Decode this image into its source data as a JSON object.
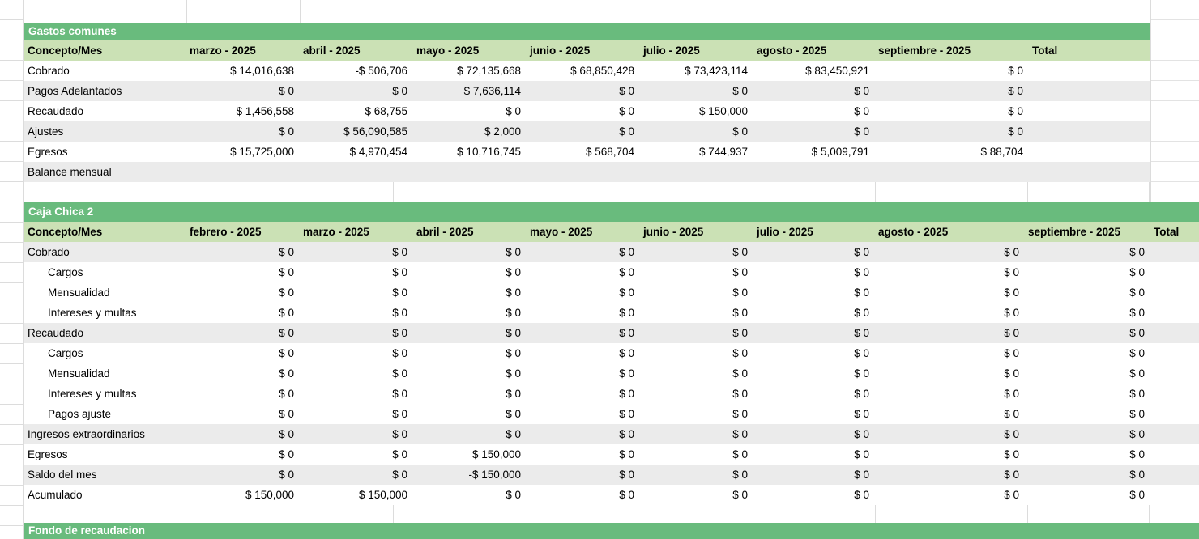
{
  "colors": {
    "banner_green": "#69bb7d",
    "header_green": "#cbe1b5",
    "band_gray": "#ebebeb",
    "gridline": "#dcdcdc",
    "banner_text": "#ffffff"
  },
  "tables": [
    {
      "title": "Gastos comunes",
      "columns": [
        "Concepto/Mes",
        "marzo - 2025",
        "abril - 2025",
        "mayo - 2025",
        "junio - 2025",
        "julio - 2025",
        "agosto - 2025",
        "septiembre - 2025",
        "Total"
      ],
      "rows": [
        {
          "label": "Cobrado",
          "indent": false,
          "shaded": false,
          "values": [
            "$ 14,016,638",
            "-$ 506,706",
            "$ 72,135,668",
            "$ 68,850,428",
            "$ 73,423,114",
            "$ 83,450,921",
            "$ 0",
            ""
          ]
        },
        {
          "label": "Pagos Adelantados",
          "indent": false,
          "shaded": true,
          "values": [
            "$ 0",
            "$ 0",
            "$ 7,636,114",
            "$ 0",
            "$ 0",
            "$ 0",
            "$ 0",
            ""
          ]
        },
        {
          "label": "Recaudado",
          "indent": false,
          "shaded": false,
          "values": [
            "$ 1,456,558",
            "$ 68,755",
            "$ 0",
            "$ 0",
            "$ 150,000",
            "$ 0",
            "$ 0",
            ""
          ]
        },
        {
          "label": "Ajustes",
          "indent": false,
          "shaded": true,
          "values": [
            "$ 0",
            "$ 56,090,585",
            "$ 2,000",
            "$ 0",
            "$ 0",
            "$ 0",
            "$ 0",
            ""
          ]
        },
        {
          "label": "Egresos",
          "indent": false,
          "shaded": false,
          "values": [
            "$ 15,725,000",
            "$ 4,970,454",
            "$ 10,716,745",
            "$ 568,704",
            "$ 744,937",
            "$ 5,009,791",
            "$ 88,704",
            ""
          ]
        },
        {
          "label": "Balance mensual",
          "indent": false,
          "shaded": true,
          "values": [
            "",
            "",
            "",
            "",
            "",
            "",
            "",
            ""
          ]
        }
      ]
    },
    {
      "title": "Caja Chica 2",
      "columns": [
        "Concepto/Mes",
        "febrero - 2025",
        "marzo - 2025",
        "abril - 2025",
        "mayo - 2025",
        "junio - 2025",
        "julio - 2025",
        "agosto - 2025",
        "septiembre - 2025",
        "Total"
      ],
      "rows": [
        {
          "label": "Cobrado",
          "indent": false,
          "shaded": true,
          "values": [
            "$ 0",
            "$ 0",
            "$ 0",
            "$ 0",
            "$ 0",
            "$ 0",
            "$ 0",
            "$ 0",
            ""
          ]
        },
        {
          "label": "Cargos",
          "indent": true,
          "shaded": false,
          "values": [
            "$ 0",
            "$ 0",
            "$ 0",
            "$ 0",
            "$ 0",
            "$ 0",
            "$ 0",
            "$ 0",
            ""
          ]
        },
        {
          "label": "Mensualidad",
          "indent": true,
          "shaded": false,
          "values": [
            "$ 0",
            "$ 0",
            "$ 0",
            "$ 0",
            "$ 0",
            "$ 0",
            "$ 0",
            "$ 0",
            ""
          ]
        },
        {
          "label": "Intereses y multas",
          "indent": true,
          "shaded": false,
          "values": [
            "$ 0",
            "$ 0",
            "$ 0",
            "$ 0",
            "$ 0",
            "$ 0",
            "$ 0",
            "$ 0",
            ""
          ]
        },
        {
          "label": "Recaudado",
          "indent": false,
          "shaded": true,
          "values": [
            "$ 0",
            "$ 0",
            "$ 0",
            "$ 0",
            "$ 0",
            "$ 0",
            "$ 0",
            "$ 0",
            ""
          ]
        },
        {
          "label": "Cargos",
          "indent": true,
          "shaded": false,
          "values": [
            "$ 0",
            "$ 0",
            "$ 0",
            "$ 0",
            "$ 0",
            "$ 0",
            "$ 0",
            "$ 0",
            ""
          ]
        },
        {
          "label": "Mensualidad",
          "indent": true,
          "shaded": false,
          "values": [
            "$ 0",
            "$ 0",
            "$ 0",
            "$ 0",
            "$ 0",
            "$ 0",
            "$ 0",
            "$ 0",
            ""
          ]
        },
        {
          "label": "Intereses y multas",
          "indent": true,
          "shaded": false,
          "values": [
            "$ 0",
            "$ 0",
            "$ 0",
            "$ 0",
            "$ 0",
            "$ 0",
            "$ 0",
            "$ 0",
            ""
          ]
        },
        {
          "label": "Pagos ajuste",
          "indent": true,
          "shaded": false,
          "values": [
            "$ 0",
            "$ 0",
            "$ 0",
            "$ 0",
            "$ 0",
            "$ 0",
            "$ 0",
            "$ 0",
            ""
          ]
        },
        {
          "label": "Ingresos extraordinarios",
          "indent": false,
          "shaded": true,
          "values": [
            "$ 0",
            "$ 0",
            "$ 0",
            "$ 0",
            "$ 0",
            "$ 0",
            "$ 0",
            "$ 0",
            ""
          ]
        },
        {
          "label": "Egresos",
          "indent": false,
          "shaded": false,
          "values": [
            "$ 0",
            "$ 0",
            "$ 150,000",
            "$ 0",
            "$ 0",
            "$ 0",
            "$ 0",
            "$ 0",
            ""
          ]
        },
        {
          "label": "Saldo del mes",
          "indent": false,
          "shaded": true,
          "values": [
            "$ 0",
            "$ 0",
            "-$ 150,000",
            "$ 0",
            "$ 0",
            "$ 0",
            "$ 0",
            "$ 0",
            ""
          ]
        },
        {
          "label": "Acumulado",
          "indent": false,
          "shaded": false,
          "values": [
            "$ 150,000",
            "$ 150,000",
            "$ 0",
            "$ 0",
            "$ 0",
            "$ 0",
            "$ 0",
            "$ 0",
            ""
          ]
        }
      ]
    },
    {
      "title": "Fondo de recaudacion",
      "columns": [],
      "rows": []
    }
  ]
}
